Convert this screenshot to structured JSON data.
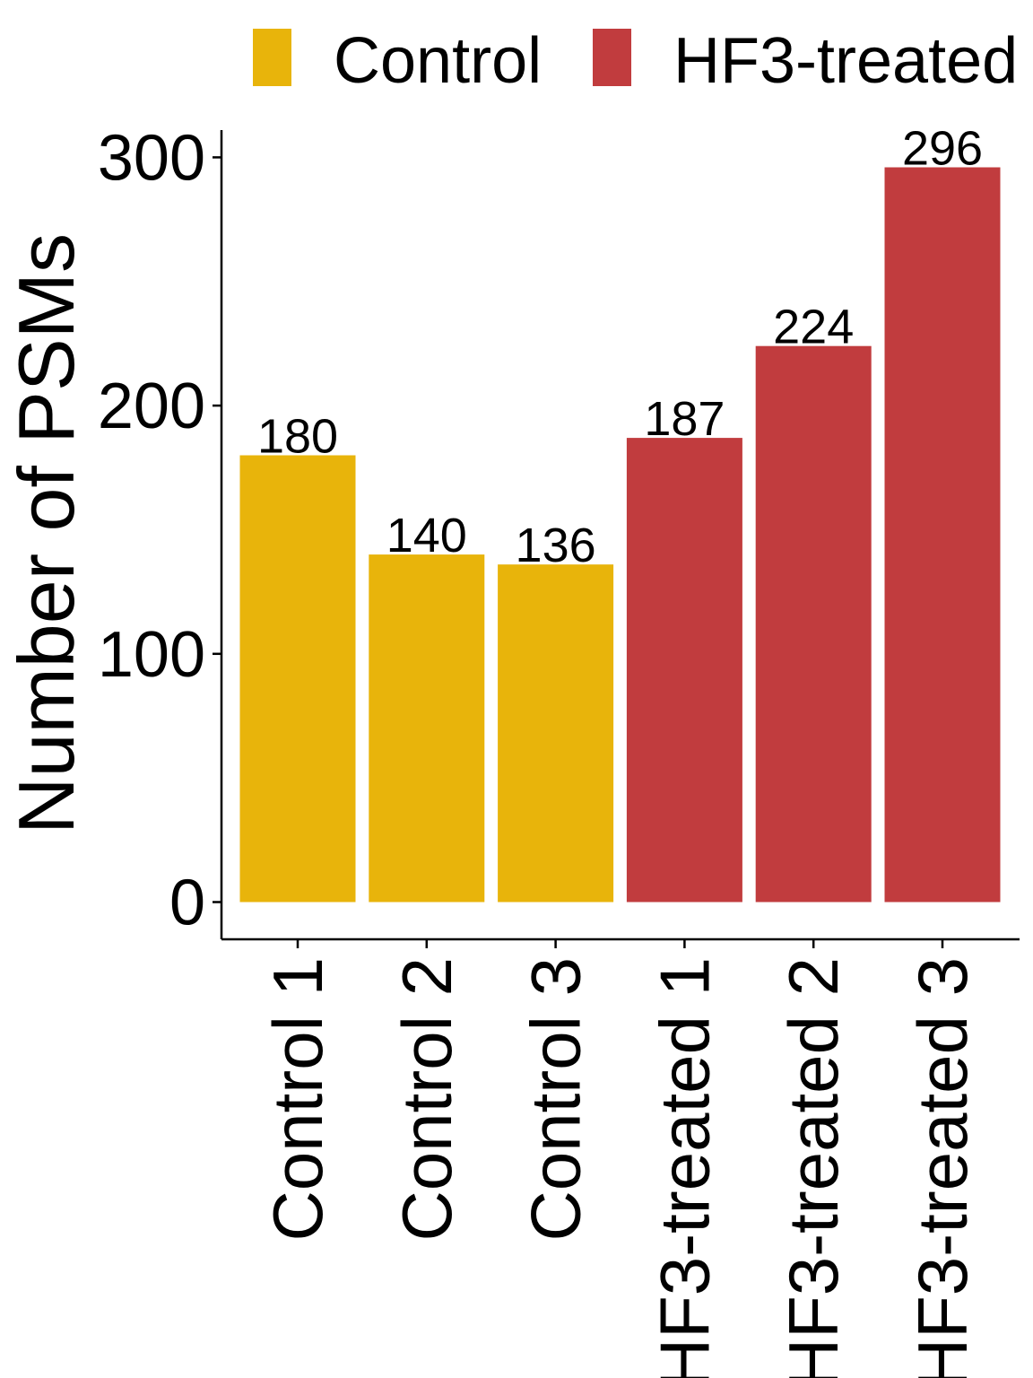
{
  "chart_data": {
    "type": "bar",
    "title": "",
    "xlabel": "",
    "ylabel": "Number of PSMs",
    "categories": [
      "Control 1",
      "Control 2",
      "Control 3",
      "HF3-treated 1",
      "HF3-treated 2",
      "HF3-treated 3"
    ],
    "values": [
      180,
      140,
      136,
      187,
      224,
      296
    ],
    "groups": [
      "Control",
      "Control",
      "Control",
      "HF3-treated",
      "HF3-treated",
      "HF3-treated"
    ],
    "ylim": [
      -15,
      311
    ],
    "yticks": [
      0,
      100,
      200,
      300
    ],
    "ytick_labels": [
      "0",
      "100",
      "200",
      "300"
    ],
    "grid": false,
    "legend": {
      "position": "top",
      "entries": [
        {
          "label": "Control",
          "color": "#E8B40B"
        },
        {
          "label": "HF3-treated",
          "color": "#C13C3E"
        }
      ]
    }
  }
}
